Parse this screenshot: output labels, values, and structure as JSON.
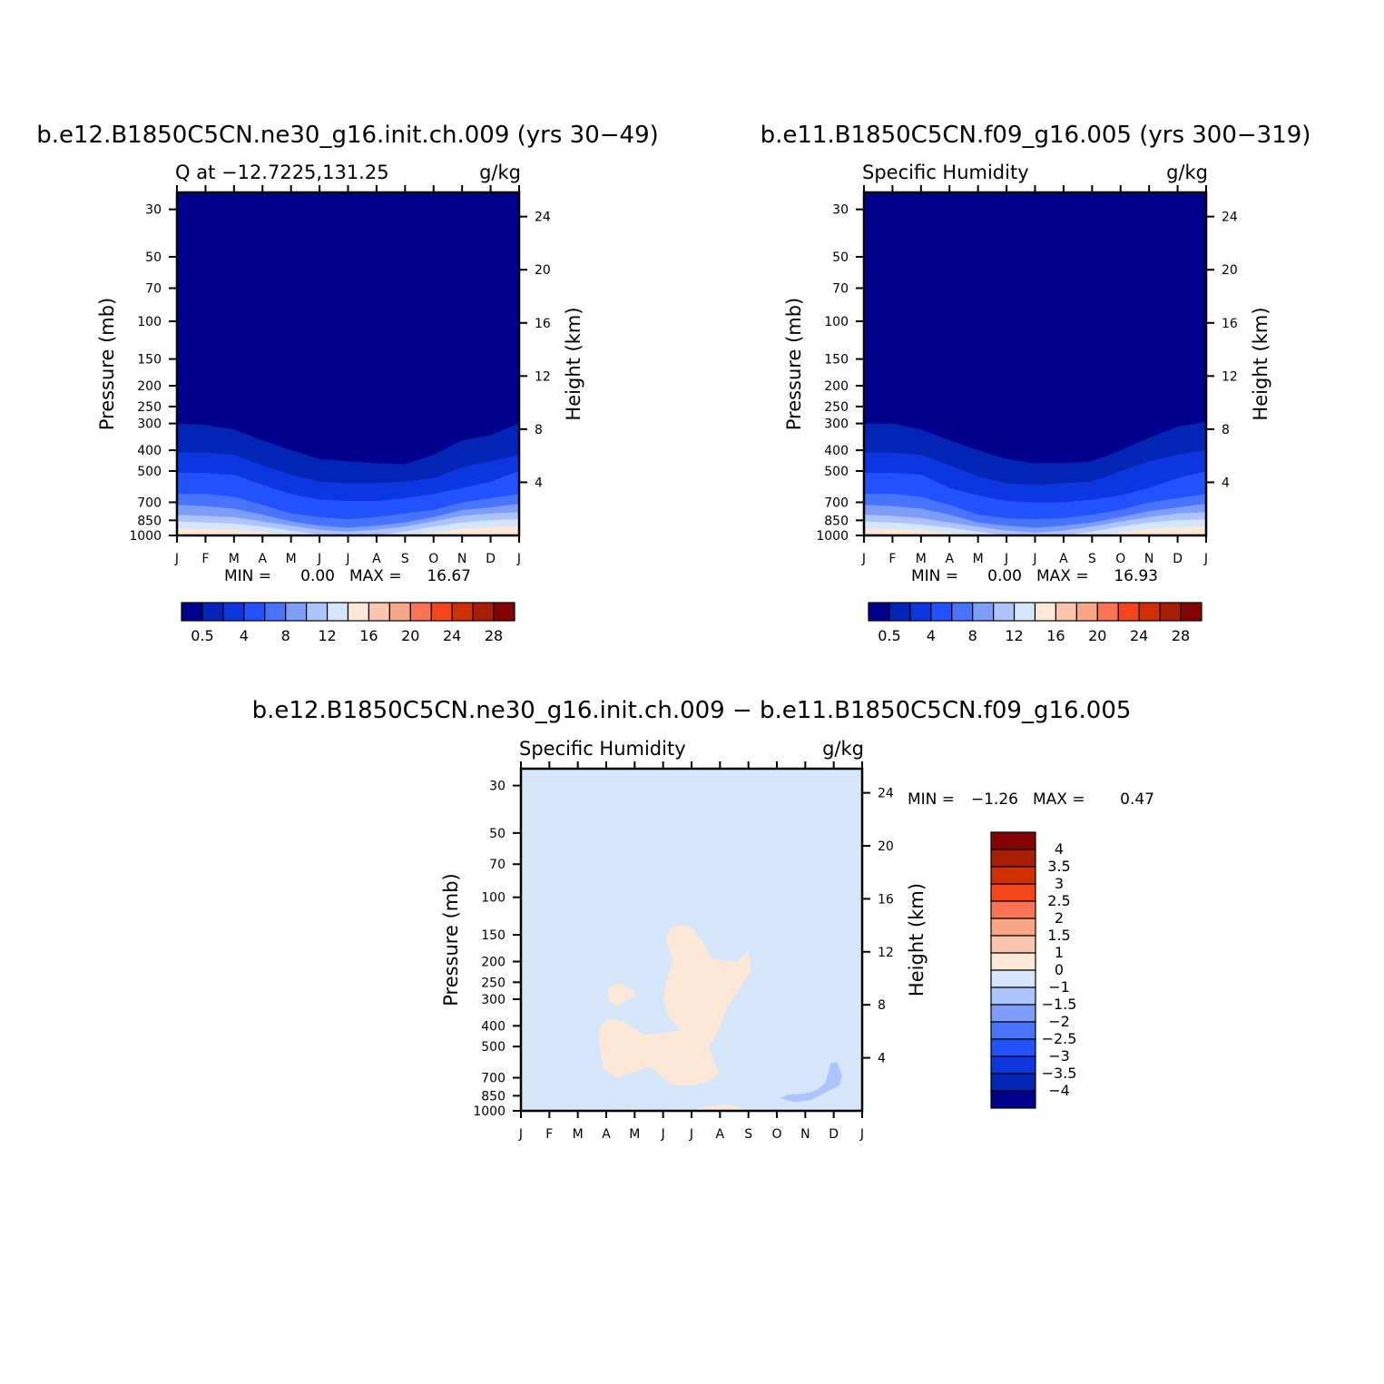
{
  "chart_data": [
    {
      "type": "contour",
      "title": "b.e12.B1850C5CN.ne30_g16.init.ch.009 (yrs 30−49)",
      "left_string": "Q at −12.7225,131.25",
      "right_string": "g/kg",
      "ylabel": "Pressure (mb)",
      "ylabel_right": "Height (km)",
      "x_ticks": [
        "J",
        "F",
        "M",
        "A",
        "M",
        "J",
        "J",
        "A",
        "S",
        "O",
        "N",
        "D",
        "J"
      ],
      "y_ticks": [
        "30",
        "50",
        "70",
        "100",
        "150",
        "200",
        "250",
        "300",
        "400",
        "500",
        "700",
        "850",
        "1000"
      ],
      "y_right_ticks": [
        "24",
        "20",
        "16",
        "12",
        "8",
        "4"
      ],
      "ylim": [
        1000,
        25
      ],
      "y_scale": "log",
      "stats": {
        "min_label": "MIN =",
        "min": "0.00",
        "max_label": "MAX =",
        "max": "16.67"
      },
      "contour_levels": [
        0.5,
        2,
        4,
        6,
        8,
        10,
        12,
        14,
        16,
        18,
        20,
        22,
        24,
        26,
        28
      ],
      "colorbar_labels": [
        "0.5",
        "4",
        "8",
        "12",
        "16",
        "20",
        "24",
        "28"
      ],
      "colorbar_orientation": "horizontal",
      "colors": [
        "#01008d",
        "#0225b6",
        "#0b36e0",
        "#2152fb",
        "#4774fb",
        "#7e9df8",
        "#adc3fb",
        "#d5e6fb",
        "#fde8d8",
        "#fcc6ae",
        "#f9a684",
        "#f97455",
        "#f34519",
        "#d03004",
        "#a81d06",
        "#820402"
      ],
      "level_boundaries": [
        {
          "level": 0.5,
          "p": [
            300,
            305,
            320,
            360,
            400,
            440,
            450,
            460,
            465,
            420,
            360,
            340,
            300
          ]
        },
        {
          "level": 2,
          "p": [
            410,
            410,
            420,
            470,
            520,
            560,
            570,
            570,
            560,
            540,
            480,
            450,
            420
          ]
        },
        {
          "level": 4,
          "p": [
            510,
            510,
            520,
            580,
            640,
            680,
            690,
            690,
            670,
            640,
            600,
            560,
            500
          ]
        },
        {
          "level": 6,
          "p": [
            640,
            640,
            660,
            720,
            790,
            820,
            840,
            820,
            790,
            760,
            700,
            670,
            640
          ]
        },
        {
          "level": 8,
          "p": [
            720,
            730,
            750,
            800,
            860,
            900,
            920,
            900,
            870,
            820,
            760,
            740,
            710
          ]
        },
        {
          "level": 10,
          "p": [
            800,
            810,
            820,
            860,
            900,
            940,
            960,
            940,
            910,
            860,
            810,
            790,
            780
          ]
        },
        {
          "level": 12,
          "p": [
            860,
            870,
            880,
            910,
            950,
            990,
            1000,
            1000,
            960,
            910,
            870,
            850,
            840
          ]
        },
        {
          "level": 14,
          "p": [
            930,
            935,
            940,
            960,
            1000,
            1000,
            1000,
            1000,
            1000,
            970,
            930,
            915,
            910
          ]
        },
        {
          "level": 16,
          "p": [
            985,
            990,
            1000,
            1000,
            1000,
            1000,
            1000,
            1000,
            1000,
            1000,
            1000,
            990,
            985
          ]
        }
      ]
    },
    {
      "type": "contour",
      "title": "b.e11.B1850C5CN.f09_g16.005 (yrs 300−319)",
      "left_string": "Specific Humidity",
      "right_string": "g/kg",
      "ylabel": "Pressure (mb)",
      "ylabel_right": "Height (km)",
      "x_ticks": [
        "J",
        "F",
        "M",
        "A",
        "M",
        "J",
        "J",
        "A",
        "S",
        "O",
        "N",
        "D",
        "J"
      ],
      "y_ticks": [
        "30",
        "50",
        "70",
        "100",
        "150",
        "200",
        "250",
        "300",
        "400",
        "500",
        "700",
        "850",
        "1000"
      ],
      "y_right_ticks": [
        "24",
        "20",
        "16",
        "12",
        "8",
        "4"
      ],
      "ylim": [
        1000,
        25
      ],
      "y_scale": "log",
      "stats": {
        "min_label": "MIN =",
        "min": "0.00",
        "max_label": "MAX =",
        "max": "16.93"
      },
      "contour_levels": [
        0.5,
        2,
        4,
        6,
        8,
        10,
        12,
        14,
        16,
        18,
        20,
        22,
        24,
        26,
        28
      ],
      "colorbar_labels": [
        "0.5",
        "4",
        "8",
        "12",
        "16",
        "20",
        "24",
        "28"
      ],
      "colorbar_orientation": "horizontal",
      "colors": [
        "#01008d",
        "#0225b6",
        "#0b36e0",
        "#2152fb",
        "#4774fb",
        "#7e9df8",
        "#adc3fb",
        "#d5e6fb",
        "#fde8d8",
        "#fcc6ae",
        "#f9a684",
        "#f97455",
        "#f34519",
        "#d03004",
        "#a81d06",
        "#820402"
      ],
      "level_boundaries": [
        {
          "level": 0.5,
          "p": [
            300,
            300,
            320,
            360,
            400,
            440,
            460,
            460,
            450,
            400,
            350,
            310,
            295
          ]
        },
        {
          "level": 2,
          "p": [
            410,
            410,
            420,
            470,
            530,
            570,
            580,
            570,
            560,
            500,
            450,
            420,
            400
          ]
        },
        {
          "level": 4,
          "p": [
            510,
            510,
            520,
            600,
            650,
            690,
            700,
            700,
            680,
            650,
            600,
            540,
            500
          ]
        },
        {
          "level": 6,
          "p": [
            640,
            640,
            660,
            720,
            800,
            830,
            840,
            830,
            800,
            760,
            700,
            670,
            640
          ]
        },
        {
          "level": 8,
          "p": [
            720,
            730,
            750,
            800,
            870,
            900,
            920,
            900,
            870,
            820,
            770,
            740,
            710
          ]
        },
        {
          "level": 10,
          "p": [
            800,
            810,
            830,
            870,
            910,
            950,
            970,
            950,
            910,
            860,
            820,
            790,
            780
          ]
        },
        {
          "level": 12,
          "p": [
            860,
            870,
            890,
            920,
            960,
            1000,
            1000,
            1000,
            960,
            910,
            870,
            850,
            840
          ]
        },
        {
          "level": 14,
          "p": [
            930,
            935,
            945,
            970,
            1000,
            1000,
            1000,
            1000,
            1000,
            970,
            930,
            915,
            910
          ]
        },
        {
          "level": 16,
          "p": [
            980,
            985,
            990,
            1000,
            1000,
            1000,
            1000,
            1000,
            1000,
            1000,
            990,
            985,
            980
          ]
        }
      ]
    },
    {
      "type": "contour",
      "title": "b.e12.B1850C5CN.ne30_g16.init.ch.009 − b.e11.B1850C5CN.f09_g16.005",
      "left_string": "Specific Humidity",
      "right_string": "g/kg",
      "ylabel": "Pressure (mb)",
      "ylabel_right": "Height (km)",
      "x_ticks": [
        "J",
        "F",
        "M",
        "A",
        "M",
        "J",
        "J",
        "A",
        "S",
        "O",
        "N",
        "D",
        "J"
      ],
      "y_ticks": [
        "30",
        "50",
        "70",
        "100",
        "150",
        "200",
        "250",
        "300",
        "400",
        "500",
        "700",
        "850",
        "1000"
      ],
      "y_right_ticks": [
        "24",
        "20",
        "16",
        "12",
        "8",
        "4"
      ],
      "ylim": [
        1000,
        25
      ],
      "y_scale": "log",
      "stats": {
        "min_label": "MIN =",
        "min": "−1.26",
        "max_label": "MAX =",
        "max": "0.47"
      },
      "contour_levels": [
        -4,
        -3.5,
        -3,
        -2.5,
        -2,
        -1.5,
        -1,
        0,
        1,
        1.5,
        2,
        2.5,
        3,
        3.5,
        4
      ],
      "colorbar_labels": [
        "4",
        "3.5",
        "3",
        "2.5",
        "2",
        "1.5",
        "1",
        "0",
        "−1",
        "−1.5",
        "−2",
        "−2.5",
        "−3",
        "−3.5",
        "−4"
      ],
      "colorbar_orientation": "vertical",
      "colors": [
        "#01008d",
        "#0225b6",
        "#0b36e0",
        "#2152fb",
        "#4774fb",
        "#7e9df8",
        "#adc3fb",
        "#d5e6fb",
        "#fde8d8",
        "#fcc6ae",
        "#f9a684",
        "#f97455",
        "#f34519",
        "#d03004",
        "#a81d06",
        "#820402"
      ],
      "background_color": "#d5e6fb",
      "regions": [
        {
          "color": "#fde8d8",
          "points": [
            [
              6.0,
              138
            ],
            [
              5.6,
              135
            ],
            [
              5.25,
              140
            ],
            [
              5.1,
              160
            ],
            [
              5.35,
              200
            ],
            [
              5.1,
              250
            ],
            [
              5.0,
              300
            ],
            [
              5.2,
              360
            ],
            [
              5.6,
              420
            ],
            [
              5.1,
              430
            ],
            [
              4.3,
              440
            ],
            [
              3.6,
              380
            ],
            [
              3.1,
              370
            ],
            [
              2.8,
              400
            ],
            [
              2.75,
              480
            ],
            [
              2.9,
              640
            ],
            [
              3.4,
              700
            ],
            [
              4.1,
              650
            ],
            [
              4.5,
              620
            ],
            [
              5.0,
              700
            ],
            [
              5.4,
              760
            ],
            [
              6.0,
              760
            ],
            [
              6.6,
              730
            ],
            [
              7.0,
              660
            ],
            [
              6.8,
              600
            ],
            [
              6.6,
              500
            ],
            [
              6.9,
              430
            ],
            [
              7.3,
              320
            ],
            [
              8.1,
              220
            ],
            [
              8.0,
              180
            ],
            [
              7.6,
              200
            ],
            [
              6.7,
              195
            ],
            [
              6.5,
              170
            ]
          ]
        },
        {
          "color": "#fde8d8",
          "points": [
            [
              3.7,
              265
            ],
            [
              3.55,
              255
            ],
            [
              3.3,
              255
            ],
            [
              3.1,
              265
            ],
            [
              3.05,
              300
            ],
            [
              3.35,
              320
            ],
            [
              3.7,
              305
            ],
            [
              4.05,
              290
            ],
            [
              3.9,
              270
            ]
          ]
        },
        {
          "color": "#fde8d8",
          "points": [
            [
              3.1,
              1000
            ],
            [
              4.0,
              975
            ],
            [
              5.0,
              990
            ],
            [
              6.0,
              1000
            ],
            [
              6.6,
              950
            ],
            [
              7.4,
              940
            ],
            [
              8.0,
              1000
            ]
          ]
        },
        {
          "color": "#adc3fb",
          "points": [
            [
              10.9,
              600
            ],
            [
              10.7,
              740
            ],
            [
              10.4,
              800
            ],
            [
              10.0,
              830
            ],
            [
              9.4,
              840
            ],
            [
              9.1,
              870
            ],
            [
              9.6,
              910
            ],
            [
              10.2,
              890
            ],
            [
              10.8,
              810
            ],
            [
              11.2,
              760
            ],
            [
              11.3,
              680
            ],
            [
              11.1,
              590
            ]
          ]
        }
      ]
    }
  ]
}
